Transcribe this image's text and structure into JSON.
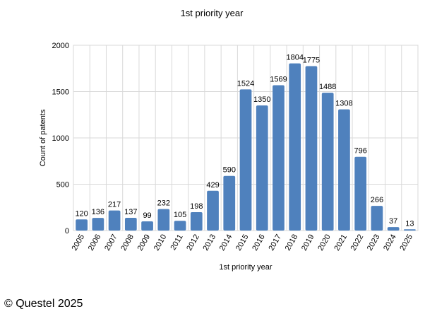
{
  "chart_data": {
    "type": "bar",
    "title": "1st priority year",
    "xlabel": "1st priority year",
    "ylabel": "Count of patents",
    "categories": [
      "2005",
      "2006",
      "2007",
      "2008",
      "2009",
      "2010",
      "2011",
      "2012",
      "2013",
      "2014",
      "2015",
      "2016",
      "2017",
      "2018",
      "2019",
      "2020",
      "2021",
      "2022",
      "2023",
      "2024",
      "2025"
    ],
    "values": [
      120,
      136,
      217,
      137,
      99,
      232,
      105,
      198,
      429,
      590,
      1524,
      1350,
      1569,
      1804,
      1775,
      1488,
      1308,
      796,
      266,
      37,
      13
    ],
    "ylim": [
      0,
      2000
    ],
    "yticks": [
      0,
      500,
      1000,
      1500,
      2000
    ],
    "grid": true,
    "bar_color": "#4f81bd",
    "data_labels": true
  },
  "footer": {
    "copyright": "© Questel 2025"
  }
}
